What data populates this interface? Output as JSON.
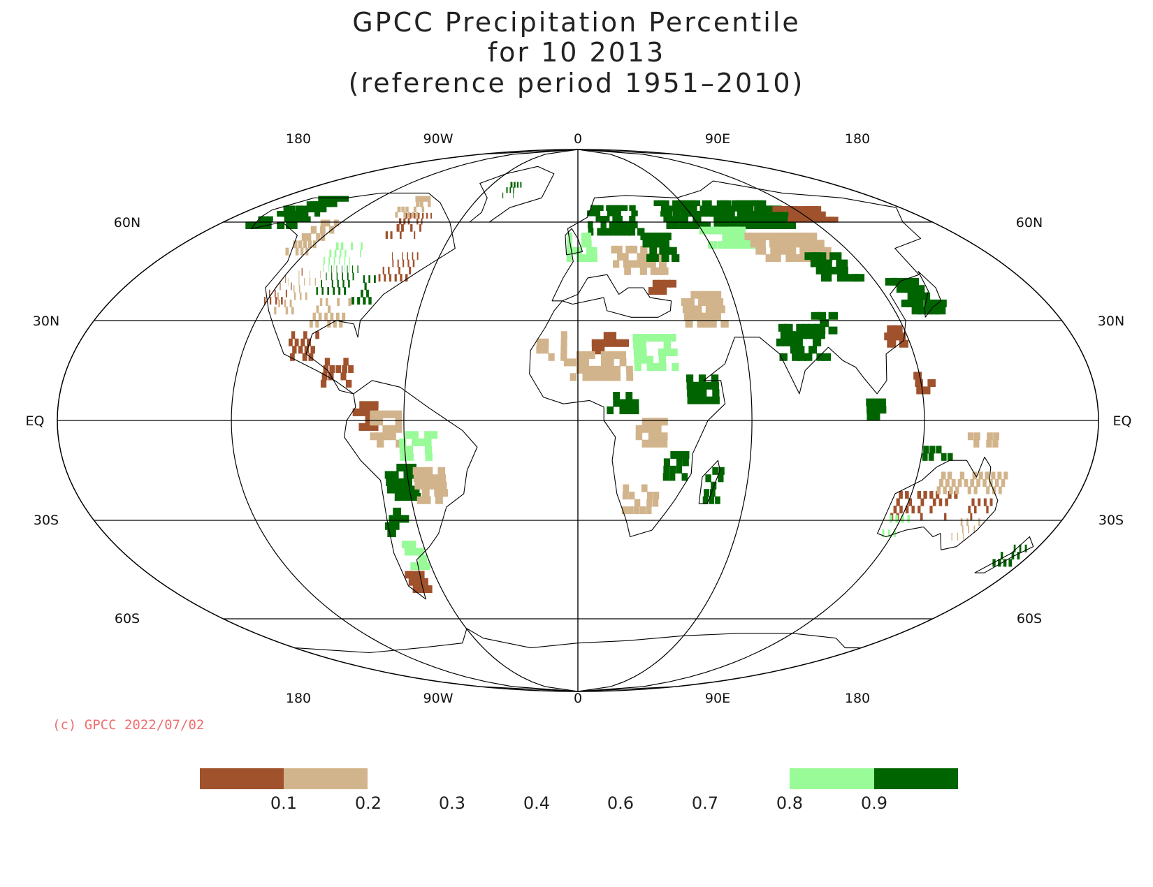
{
  "title": {
    "line1": "GPCC Precipitation Percentile",
    "line2": "for 10 2013",
    "line3": "(reference period 1951–2010)"
  },
  "axes": {
    "lon_labels": [
      "180",
      "90W",
      "0",
      "90E",
      "180"
    ],
    "lat_labels": [
      "60N",
      "30N",
      "EQ",
      "30S",
      "60S"
    ]
  },
  "credit": {
    "text": "(c) GPCC 2022/07/02",
    "color": "#f06e6e"
  },
  "legend": {
    "colors": {
      "very_dry": "#a0522d",
      "dry": "#d2b48c",
      "wet": "#98fb98",
      "very_wet": "#006400"
    },
    "labels": [
      "0.1",
      "0.2",
      "0.3",
      "0.4",
      "0.6",
      "0.7",
      "0.8",
      "0.9"
    ]
  },
  "map": {
    "projection": "Robinson-like",
    "ocean_color": "#ffffff",
    "coastline_color": "#000000",
    "regions": [
      {
        "cat": "very_wet",
        "lon": [
          -165,
          -140
        ],
        "lat": [
          58,
          66
        ]
      },
      {
        "cat": "very_wet",
        "lon": [
          -155,
          -140
        ],
        "lat": [
          62,
          70
        ]
      },
      {
        "cat": "dry",
        "lon": [
          -130,
          -120
        ],
        "lat": [
          50,
          60
        ]
      },
      {
        "cat": "very_dry",
        "lon": [
          -122,
          -115
        ],
        "lat": [
          35,
          45
        ]
      },
      {
        "cat": "dry",
        "lon": [
          -118,
          -105
        ],
        "lat": [
          32,
          45
        ]
      },
      {
        "cat": "very_wet",
        "lon": [
          -104,
          -92
        ],
        "lat": [
          38,
          46
        ]
      },
      {
        "cat": "wet",
        "lon": [
          -110,
          -95
        ],
        "lat": [
          45,
          52
        ]
      },
      {
        "cat": "very_dry",
        "lon": [
          -92,
          -78
        ],
        "lat": [
          55,
          62
        ]
      },
      {
        "cat": "dry",
        "lon": [
          -100,
          -85
        ],
        "lat": [
          62,
          70
        ]
      },
      {
        "cat": "very_dry",
        "lon": [
          -82,
          -70
        ],
        "lat": [
          42,
          50
        ]
      },
      {
        "cat": "very_wet",
        "lon": [
          -88,
          -80
        ],
        "lat": [
          35,
          42
        ]
      },
      {
        "cat": "dry",
        "lon": [
          -100,
          -88
        ],
        "lat": [
          28,
          36
        ]
      },
      {
        "cat": "very_dry",
        "lon": [
          -105,
          -95
        ],
        "lat": [
          18,
          26
        ]
      },
      {
        "cat": "very_dry",
        "lon": [
          -90,
          -80
        ],
        "lat": [
          10,
          18
        ]
      },
      {
        "cat": "very_dry",
        "lon": [
          -78,
          -70
        ],
        "lat": [
          -3,
          5
        ]
      },
      {
        "cat": "dry",
        "lon": [
          -72,
          -62
        ],
        "lat": [
          -8,
          2
        ]
      },
      {
        "cat": "very_wet",
        "lon": [
          -68,
          -58
        ],
        "lat": [
          -24,
          -15
        ]
      },
      {
        "cat": "wet",
        "lon": [
          -62,
          -50
        ],
        "lat": [
          -12,
          -4
        ]
      },
      {
        "cat": "very_wet",
        "lon": [
          -72,
          -64
        ],
        "lat": [
          -35,
          -28
        ]
      },
      {
        "cat": "dry",
        "lon": [
          -58,
          -48
        ],
        "lat": [
          -25,
          -15
        ]
      },
      {
        "cat": "wet",
        "lon": [
          -68,
          -62
        ],
        "lat": [
          -45,
          -38
        ]
      },
      {
        "cat": "very_dry",
        "lon": [
          -72,
          -66
        ],
        "lat": [
          -52,
          -46
        ]
      },
      {
        "cat": "very_wet",
        "lon": [
          -48,
          -35
        ],
        "lat": [
          70,
          76
        ]
      },
      {
        "cat": "very_wet",
        "lon": [
          5,
          30
        ],
        "lat": [
          56,
          66
        ]
      },
      {
        "cat": "wet",
        "lon": [
          -5,
          8
        ],
        "lat": [
          48,
          56
        ]
      },
      {
        "cat": "dry",
        "lon": [
          15,
          35
        ],
        "lat": [
          44,
          52
        ]
      },
      {
        "cat": "very_wet",
        "lon": [
          30,
          42
        ],
        "lat": [
          48,
          56
        ]
      },
      {
        "cat": "very_wet",
        "lon": [
          45,
          110
        ],
        "lat": [
          58,
          68
        ]
      },
      {
        "cat": "wet",
        "lon": [
          60,
          80
        ],
        "lat": [
          52,
          58
        ]
      },
      {
        "cat": "very_dry",
        "lon": [
          110,
          130
        ],
        "lat": [
          60,
          66
        ]
      },
      {
        "cat": "dry",
        "lon": [
          80,
          110
        ],
        "lat": [
          48,
          56
        ]
      },
      {
        "cat": "very_wet",
        "lon": [
          100,
          115
        ],
        "lat": [
          42,
          50
        ]
      },
      {
        "cat": "very_wet",
        "lon": [
          125,
          140
        ],
        "lat": [
          32,
          42
        ]
      },
      {
        "cat": "dry",
        "lon": [
          40,
          55
        ],
        "lat": [
          28,
          38
        ]
      },
      {
        "cat": "very_dry",
        "lon": [
          28,
          38
        ],
        "lat": [
          38,
          42
        ]
      },
      {
        "cat": "very_wet",
        "lon": [
          72,
          88
        ],
        "lat": [
          18,
          28
        ]
      },
      {
        "cat": "very_wet",
        "lon": [
          88,
          96
        ],
        "lat": [
          26,
          32
        ]
      },
      {
        "cat": "very_dry",
        "lon": [
          112,
          118
        ],
        "lat": [
          22,
          28
        ]
      },
      {
        "cat": "dry",
        "lon": [
          -15,
          -5
        ],
        "lat": [
          18,
          26
        ]
      },
      {
        "cat": "very_dry",
        "lon": [
          5,
          18
        ],
        "lat": [
          20,
          25
        ]
      },
      {
        "cat": "dry",
        "lon": [
          -5,
          18
        ],
        "lat": [
          12,
          20
        ]
      },
      {
        "cat": "wet",
        "lon": [
          20,
          35
        ],
        "lat": [
          15,
          25
        ]
      },
      {
        "cat": "very_wet",
        "lon": [
          38,
          48
        ],
        "lat": [
          5,
          12
        ]
      },
      {
        "cat": "very_wet",
        "lon": [
          10,
          20
        ],
        "lat": [
          2,
          8
        ]
      },
      {
        "cat": "dry",
        "lon": [
          20,
          30
        ],
        "lat": [
          -8,
          0
        ]
      },
      {
        "cat": "very_wet",
        "lon": [
          30,
          38
        ],
        "lat": [
          -18,
          -10
        ]
      },
      {
        "cat": "dry",
        "lon": [
          16,
          28
        ],
        "lat": [
          -28,
          -20
        ]
      },
      {
        "cat": "very_wet",
        "lon": [
          45,
          50
        ],
        "lat": [
          -25,
          -15
        ]
      },
      {
        "cat": "very_dry",
        "lon": [
          115,
          135
        ],
        "lat": [
          -30,
          -22
        ]
      },
      {
        "cat": "dry",
        "lon": [
          128,
          150
        ],
        "lat": [
          -22,
          -16
        ]
      },
      {
        "cat": "very_dry",
        "lon": [
          140,
          150
        ],
        "lat": [
          -30,
          -25
        ]
      },
      {
        "cat": "dry",
        "lon": [
          142,
          150
        ],
        "lat": [
          -36,
          -30
        ]
      },
      {
        "cat": "very_wet",
        "lon": [
          120,
          130
        ],
        "lat": [
          -12,
          -8
        ]
      },
      {
        "cat": "wet",
        "lon": [
          115,
          122
        ],
        "lat": [
          -35,
          -30
        ]
      },
      {
        "cat": "very_wet",
        "lon": [
          168,
          176
        ],
        "lat": [
          -44,
          -38
        ]
      },
      {
        "cat": "very_dry",
        "lon": [
          118,
          124
        ],
        "lat": [
          8,
          14
        ]
      },
      {
        "cat": "very_wet",
        "lon": [
          100,
          106
        ],
        "lat": [
          0,
          6
        ]
      },
      {
        "cat": "dry",
        "lon": [
          135,
          145
        ],
        "lat": [
          -8,
          -4
        ]
      }
    ]
  }
}
